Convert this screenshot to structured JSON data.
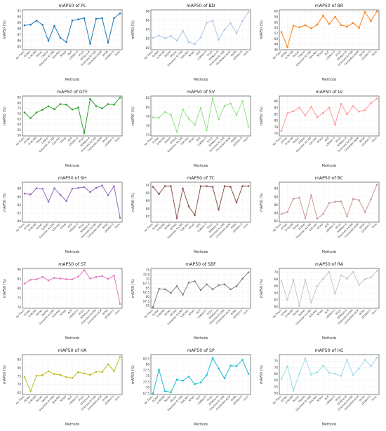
{
  "categories": [
    "No Trans",
    "ECNet",
    "D-RCNN",
    "ReDet",
    "DDDet",
    "Gaussian R-CNN",
    "S2A-Net",
    "KFIoU",
    "ACE",
    "LSKNet-S",
    "PCLD",
    "RTMDet-R",
    "Oriented R-CNN",
    "CenterNet-ACM",
    "RVSA",
    "LEGNet-S",
    "Ours"
  ],
  "chart_data": [
    {
      "type": "line",
      "title": "mAP50 of PL",
      "xlabel": "Methods",
      "ylabel": "mAP50 (%)",
      "color": "#1f77b4",
      "ylim": [
        84.5,
        91.2
      ],
      "yticks": [
        85,
        86,
        87,
        88,
        89,
        90,
        91
      ],
      "values": [
        88.6,
        88.7,
        89.4,
        88.7,
        86.0,
        88.5,
        86.5,
        85.8,
        89.4,
        89.6,
        89.8,
        85.5,
        89.7,
        89.8,
        85.7,
        89.8,
        90.6
      ]
    },
    {
      "type": "line",
      "title": "mAP50 of BD",
      "xlabel": "Methods",
      "ylabel": "mAP50 (%)",
      "color": "#aec7e8",
      "ylim": [
        79.6,
        88.3
      ],
      "yticks": [
        80,
        82,
        84,
        86,
        88
      ],
      "values": [
        82.2,
        82.7,
        82.1,
        82.6,
        81.6,
        83.7,
        81.3,
        80.8,
        82.3,
        85.5,
        85.9,
        81.8,
        84.0,
        85.4,
        83.2,
        85.9,
        87.8
      ]
    },
    {
      "type": "line",
      "title": "mAP50 of BR",
      "xlabel": "Methods",
      "ylabel": "mAP50 (%)",
      "color": "#ff7f0e",
      "ylim": [
        46,
        60.6
      ],
      "yticks": [
        46,
        48,
        50,
        52,
        54,
        56,
        58,
        60
      ],
      "values": [
        52.5,
        47.0,
        54.8,
        54.2,
        55.0,
        53.8,
        55.2,
        58.5,
        55.4,
        58.0,
        55.0,
        54.5,
        55.8,
        54.0,
        59.8,
        56.5,
        60.0
      ]
    },
    {
      "type": "line",
      "title": "mAP50 of GTF",
      "xlabel": "Methods",
      "ylabel": "mAP50 (%)",
      "color": "#2ca02c",
      "ylim": [
        49.5,
        86.5
      ],
      "yticks": [
        50,
        55,
        60,
        65,
        70,
        75,
        80,
        85
      ],
      "values": [
        71.2,
        66.0,
        71.2,
        73.8,
        77.0,
        74.2,
        79.0,
        78.5,
        74.0,
        75.8,
        52.2,
        83.8,
        77.2,
        75.0,
        79.0,
        78.5,
        85.0
      ]
    },
    {
      "type": "line",
      "title": "mAP50 of SV",
      "xlabel": "Methods",
      "ylabel": "mAP50 (%)",
      "color": "#98df8a",
      "ylim": [
        73.8,
        82.4
      ],
      "yticks": [
        74,
        76,
        78,
        80,
        82
      ],
      "values": [
        77.8,
        77.7,
        79.0,
        78.3,
        74.7,
        79.5,
        77.5,
        76.2,
        79.8,
        75.0,
        81.9,
        77.4,
        80.3,
        80.8,
        78.3,
        81.3,
        75.8
      ]
    },
    {
      "type": "line",
      "title": "mAP50 of LV",
      "xlabel": "Methods",
      "ylabel": "mAP50 (%)",
      "color": "#ff9896",
      "ylim": [
        75.3,
        87.6
      ],
      "yticks": [
        76,
        78,
        80,
        82,
        84,
        86
      ],
      "values": [
        76.8,
        82.3,
        82.9,
        84.0,
        81.6,
        84.3,
        81.1,
        82.4,
        84.0,
        78.8,
        85.2,
        82.0,
        84.5,
        82.8,
        83.3,
        85.4,
        86.8
      ]
    },
    {
      "type": "line",
      "title": "mAP50 of SH",
      "xlabel": "Methods",
      "ylabel": "mAP50 (%)",
      "color": "#9467bd",
      "ylim": [
        79.8,
        89.6
      ],
      "yticks": [
        80,
        82,
        84,
        86,
        88
      ],
      "values": [
        86.8,
        86.6,
        88.1,
        88.0,
        84.8,
        88.1,
        86.5,
        85.0,
        88.0,
        88.2,
        88.4,
        87.2,
        88.2,
        88.8,
        86.4,
        88.6,
        80.9
      ]
    },
    {
      "type": "line",
      "title": "mAP50 of TC",
      "xlabel": "Methods",
      "ylabel": "mAP50 (%)",
      "color": "#8c564b",
      "ylim": [
        86.3,
        91.4
      ],
      "yticks": [
        87,
        88,
        89,
        90,
        91
      ],
      "values": [
        90.8,
        89.9,
        90.9,
        90.9,
        86.8,
        90.6,
        88.3,
        87.2,
        90.9,
        90.9,
        90.8,
        87.9,
        90.9,
        90.8,
        88.8,
        90.9,
        90.9
      ]
    },
    {
      "type": "line",
      "title": "mAP50 of BC",
      "xlabel": "Methods",
      "ylabel": "mAP50 (%)",
      "color": "#c49c94",
      "ylim": [
        81.8,
        91.6
      ],
      "yticks": [
        82,
        84,
        86,
        88,
        90
      ],
      "values": [
        83.8,
        84.3,
        87.5,
        87.8,
        82.8,
        88.4,
        82.7,
        83.8,
        86.5,
        86.8,
        86.9,
        83.2,
        87.5,
        87.2,
        84.3,
        87.4,
        91.0
      ]
    },
    {
      "type": "line",
      "title": "mAP50 of ST",
      "xlabel": "Methods",
      "ylabel": "mAP50 (%)",
      "color": "#e377c2",
      "ylim": [
        69.5,
        90.5
      ],
      "yticks": [
        70,
        75,
        80,
        85,
        90
      ],
      "values": [
        82.5,
        84.5,
        84.8,
        86.0,
        84.2,
        85.5,
        85.2,
        84.8,
        84.8,
        86.2,
        89.5,
        85.2,
        86.0,
        86.5,
        85.0,
        86.8,
        71.8
      ]
    },
    {
      "type": "line",
      "title": "mAP50 of SBF",
      "xlabel": "Methods",
      "ylabel": "mAP50 (%)",
      "color": "#7f7f7f",
      "ylim": [
        53.5,
        76.0
      ],
      "yticks": [
        55.0,
        57.5,
        60.0,
        62.5,
        65.0,
        67.5,
        70.0,
        72.5,
        75.0
      ],
      "values": [
        54.2,
        64.5,
        64.3,
        62.2,
        66.0,
        61.2,
        68.0,
        68.8,
        63.8,
        67.0,
        64.2,
        66.5,
        67.0,
        64.2,
        66.0,
        70.2,
        73.8
      ]
    },
    {
      "type": "line",
      "title": "mAP50 of RA",
      "xlabel": "Methods",
      "ylabel": "mAP50 (%)",
      "color": "#c7c7c7",
      "ylim": [
        59.5,
        71.2
      ],
      "yticks": [
        60,
        62,
        64,
        66,
        68,
        70
      ],
      "values": [
        67.5,
        62.0,
        67.8,
        60.2,
        67.8,
        61.2,
        66.0,
        68.2,
        70.2,
        63.8,
        69.2,
        68.2,
        70.2,
        66.4,
        68.0,
        68.6,
        70.5
      ]
    },
    {
      "type": "line",
      "title": "mAP50 of HA",
      "xlabel": "Methods",
      "ylabel": "mAP50 (%)",
      "color": "#bcbd22",
      "ylim": [
        64,
        88
      ],
      "yticks": [
        65,
        70,
        75,
        80,
        85
      ],
      "values": [
        74.6,
        66.0,
        75.3,
        75.6,
        78.0,
        76.3,
        75.8,
        74.5,
        74.0,
        77.5,
        76.7,
        75.8,
        77.7,
        77.5,
        82.2,
        78.1,
        86.6
      ]
    },
    {
      "type": "line",
      "title": "mAP50 of SP",
      "xlabel": "Methods",
      "ylabel": "mAP50 (%)",
      "color": "#17becf",
      "ylim": [
        67,
        84.3
      ],
      "yticks": [
        67.5,
        70.0,
        72.5,
        75.0,
        77.5,
        80.0,
        82.5
      ],
      "values": [
        67.5,
        77.8,
        68.5,
        68.0,
        73.5,
        73.0,
        74.8,
        71.5,
        72.2,
        75.5,
        82.8,
        78.3,
        74.0,
        79.5,
        79.3,
        82.0,
        76.0
      ]
    },
    {
      "type": "line",
      "title": "mAP50 of HC",
      "xlabel": "Methods",
      "ylabel": "mAP50 (%)",
      "color": "#9edae5",
      "ylim": [
        49,
        80
      ],
      "yticks": [
        50,
        55,
        60,
        65,
        70,
        75
      ],
      "values": [
        61.2,
        71.0,
        52.0,
        65.0,
        77.0,
        64.5,
        66.3,
        71.5,
        66.0,
        65.2,
        63.5,
        76.0,
        64.2,
        69.0,
        76.0,
        71.0,
        77.5
      ]
    }
  ]
}
